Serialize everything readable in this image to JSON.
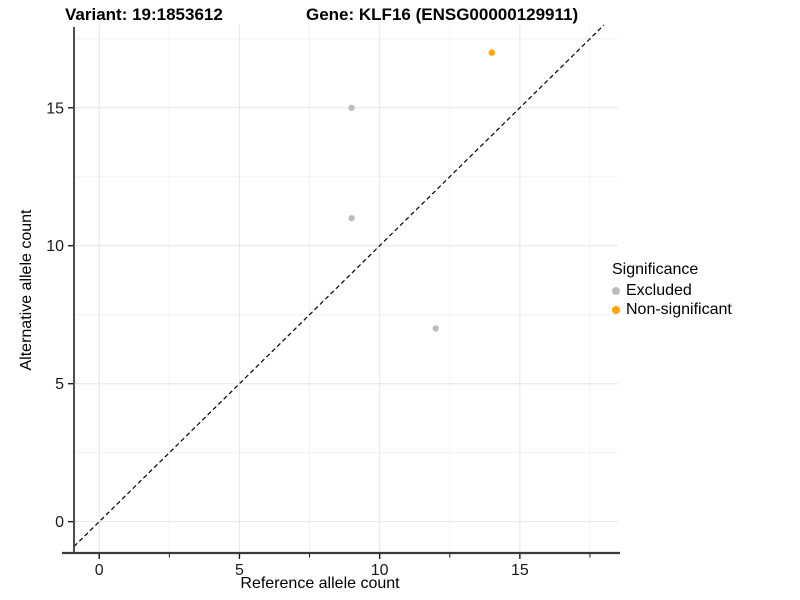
{
  "titles": {
    "variant": "Variant: 19:1853612",
    "gene": "Gene: KLF16 (ENSG00000129911)"
  },
  "chart_data": {
    "type": "scatter",
    "xlabel": "Reference allele count",
    "ylabel": "Alternative allele count",
    "xlim": [
      -0.9,
      18.5
    ],
    "ylim": [
      -1.1,
      18.0
    ],
    "x_ticks_major": [
      0,
      5,
      10,
      15
    ],
    "x_ticks_minor": [
      2.5,
      7.5,
      12.5,
      17.5
    ],
    "y_ticks_major": [
      0,
      5,
      10,
      15
    ],
    "y_ticks_minor": [
      2.5,
      7.5,
      12.5,
      17.5
    ],
    "grid": true,
    "series": [
      {
        "name": "Excluded",
        "color": "#bdbdbd",
        "points": [
          [
            9,
            15
          ],
          [
            9,
            11
          ],
          [
            12,
            7
          ]
        ]
      },
      {
        "name": "Non-significant",
        "color": "#FFA500",
        "points": [
          [
            14,
            17
          ]
        ]
      }
    ],
    "reference_line": {
      "equation": "y = x",
      "style": "dashed",
      "color": "#000000"
    },
    "legend": {
      "title": "Significance",
      "position": "right"
    }
  },
  "colors": {
    "grid_major": "#e6e6e6",
    "grid_minor": "#f2f2f2",
    "axis_line": "#3a3a3a",
    "tick": "#1a1a1a",
    "excluded": "#bdbdbd",
    "non_significant": "#FFA500"
  }
}
